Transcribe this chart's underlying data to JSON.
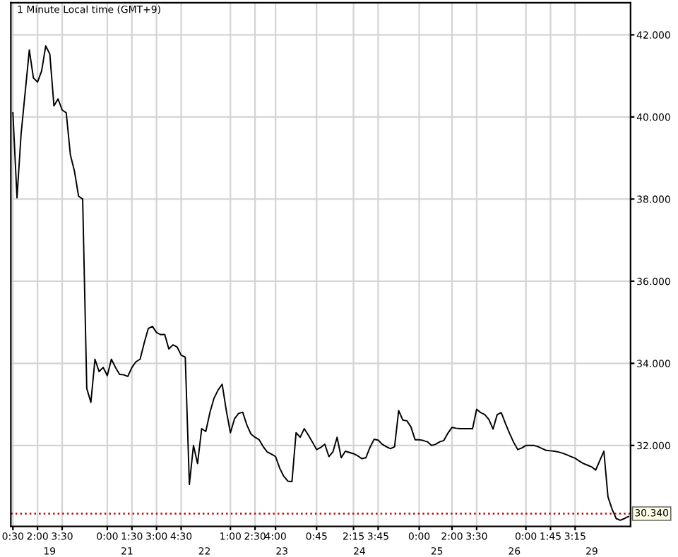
{
  "chart_data": {
    "type": "line",
    "title": "1 Minute Local time (GMT+9)",
    "categories": [
      "0:30",
      null,
      null,
      null,
      null,
      null,
      "2:00",
      null,
      null,
      null,
      null,
      null,
      "3:30",
      null,
      null,
      null,
      null,
      null,
      null,
      null,
      null,
      null,
      null,
      "0:00",
      null,
      null,
      null,
      null,
      null,
      "1:30",
      null,
      null,
      null,
      null,
      null,
      "3:00",
      null,
      null,
      null,
      null,
      null,
      "4:30",
      null,
      null,
      null,
      null,
      null,
      null,
      null,
      null,
      null,
      null,
      null,
      "1:00",
      null,
      null,
      null,
      null,
      null,
      "2:30",
      null,
      null,
      null,
      null,
      "4:00",
      null,
      null,
      null,
      null,
      null,
      null,
      null,
      null,
      null,
      "0:45",
      null,
      null,
      null,
      null,
      null,
      null,
      null,
      null,
      "2:15",
      null,
      null,
      null,
      null,
      null,
      "3:45",
      null,
      null,
      null,
      null,
      null,
      null,
      null,
      null,
      null,
      "0:00",
      null,
      null,
      null,
      null,
      null,
      null,
      null,
      "2:00",
      null,
      null,
      null,
      null,
      null,
      "3:30",
      null,
      null,
      null,
      null,
      null,
      null,
      null,
      null,
      null,
      null,
      null,
      "0:00",
      null,
      null,
      null,
      null,
      null,
      "1:45",
      null,
      null,
      null,
      null,
      null,
      "3:15",
      null,
      null,
      null,
      null,
      null,
      null,
      null,
      null,
      null,
      null,
      null,
      null,
      null
    ],
    "series": [
      {
        "color": "#000000",
        "values": [
          40.1,
          38.03,
          39.59,
          40.61,
          41.63,
          40.95,
          40.85,
          41.12,
          41.73,
          41.53,
          40.27,
          40.44,
          40.17,
          40.1,
          39.08,
          38.68,
          38.07,
          38.0,
          33.39,
          33.05,
          34.1,
          33.8,
          33.9,
          33.7,
          34.1,
          33.9,
          33.73,
          33.72,
          33.68,
          33.9,
          34.04,
          34.1,
          34.5,
          34.85,
          34.9,
          34.75,
          34.7,
          34.7,
          34.35,
          34.45,
          34.4,
          34.2,
          34.15,
          31.05,
          32.0,
          31.56,
          32.41,
          32.34,
          32.8,
          33.15,
          33.35,
          33.49,
          32.85,
          32.31,
          32.65,
          32.78,
          32.81,
          32.5,
          32.28,
          32.2,
          32.14,
          31.97,
          31.84,
          31.79,
          31.73,
          31.45,
          31.25,
          31.13,
          31.12,
          32.31,
          32.2,
          32.41,
          32.25,
          32.08,
          31.9,
          31.95,
          32.03,
          31.73,
          31.85,
          32.2,
          31.7,
          31.86,
          31.83,
          31.8,
          31.75,
          31.68,
          31.7,
          31.95,
          32.15,
          32.13,
          32.03,
          31.97,
          31.92,
          31.97,
          32.85,
          32.62,
          32.6,
          32.45,
          32.14,
          32.14,
          32.12,
          32.09,
          32.0,
          32.03,
          32.09,
          32.12,
          32.3,
          32.44,
          32.42,
          32.41,
          32.41,
          32.41,
          32.41,
          32.88,
          32.8,
          32.75,
          32.63,
          32.4,
          32.75,
          32.8,
          32.54,
          32.3,
          32.08,
          31.9,
          31.94,
          32.0,
          32.0,
          32.0,
          31.97,
          31.92,
          31.88,
          31.87,
          31.86,
          31.84,
          31.81,
          31.77,
          31.73,
          31.69,
          31.62,
          31.56,
          31.52,
          31.48,
          31.4,
          31.63,
          31.86,
          30.75,
          30.45,
          30.22,
          30.18,
          30.22,
          30.27
        ]
      }
    ],
    "annotations": [
      "19",
      "21",
      "22",
      "23",
      "24",
      "25",
      "26",
      "29"
    ],
    "ylim": [
      30.03,
      42.78
    ],
    "yticks": [
      {
        "value": 32,
        "label": "32.000"
      },
      {
        "value": 34,
        "label": "34.000"
      },
      {
        "value": 36,
        "label": "36.000"
      },
      {
        "value": 38,
        "label": "38.000"
      },
      {
        "value": 40,
        "label": "40.000"
      },
      {
        "value": 42,
        "label": "42.000"
      }
    ],
    "ref_lines": [
      {
        "axis": "y",
        "value": 30.34,
        "label": "30.340",
        "color": "#c00000",
        "line_style": "dotted"
      }
    ],
    "grid": true,
    "marker": "none",
    "line_style": "solid"
  }
}
